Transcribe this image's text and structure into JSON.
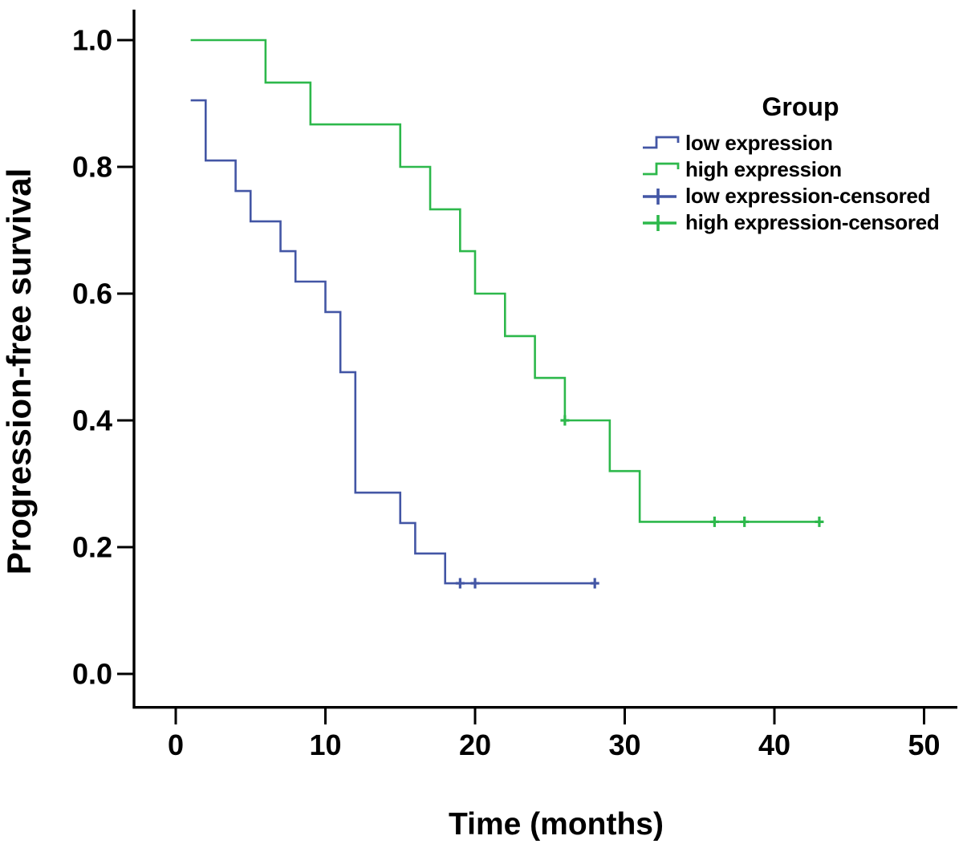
{
  "chart_data": {
    "type": "line",
    "variant": "kaplan_meier_step",
    "title": "",
    "xlabel": "Time (months)",
    "ylabel": "Progression-free survival",
    "xticks": [
      0,
      10,
      20,
      30,
      40,
      50
    ],
    "yticks": [
      "0.0",
      "0.2",
      "0.4",
      "0.6",
      "0.8",
      "1.0"
    ],
    "xlim": [
      -2.8,
      52.2
    ],
    "ylim": [
      -0.053,
      1.048
    ],
    "grid": false,
    "axis_color": "#000000",
    "background_color": "#ffffff",
    "series": [
      {
        "name": "low expression",
        "color": "#4356a5",
        "start": [
          1,
          0.905
        ],
        "drops": [
          [
            2,
            0.81
          ],
          [
            4,
            0.762
          ],
          [
            5,
            0.714
          ],
          [
            7,
            0.667
          ],
          [
            8,
            0.619
          ],
          [
            10,
            0.571
          ],
          [
            11,
            0.476
          ],
          [
            12,
            0.286
          ],
          [
            15,
            0.238
          ],
          [
            16,
            0.19
          ],
          [
            18,
            0.143
          ]
        ],
        "end_time": 28,
        "censored": [
          [
            19,
            0.143
          ],
          [
            20,
            0.143
          ],
          [
            28,
            0.143
          ]
        ]
      },
      {
        "name": "high expression",
        "color": "#2db84b",
        "start": [
          1,
          1.0
        ],
        "drops": [
          [
            6,
            0.933
          ],
          [
            9,
            0.867
          ],
          [
            15,
            0.8
          ],
          [
            17,
            0.733
          ],
          [
            19,
            0.667
          ],
          [
            20,
            0.6
          ],
          [
            22,
            0.533
          ],
          [
            24,
            0.467
          ],
          [
            26,
            0.4
          ],
          [
            29,
            0.32
          ],
          [
            31,
            0.24
          ]
        ],
        "end_time": 43,
        "censored": [
          [
            26,
            0.4
          ],
          [
            36,
            0.24
          ],
          [
            38,
            0.24
          ],
          [
            43,
            0.24
          ]
        ]
      }
    ],
    "legend": {
      "title": "Group",
      "position": "upper right",
      "entries": [
        {
          "label": "low expression",
          "marker": "step",
          "color": "#4356a5"
        },
        {
          "label": "high expression",
          "marker": "step",
          "color": "#2db84b"
        },
        {
          "label": "low expression-censored",
          "marker": "plus",
          "color": "#4356a5"
        },
        {
          "label": "high expression-censored",
          "marker": "plus",
          "color": "#2db84b"
        }
      ]
    }
  }
}
